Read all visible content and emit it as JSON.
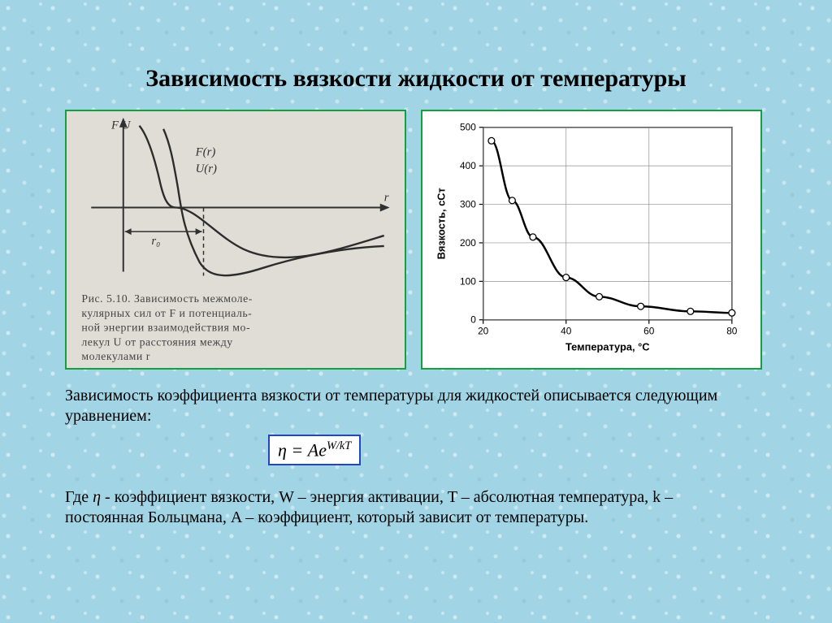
{
  "title": "Зависимость вязкости жидкости от температуры",
  "left_figure": {
    "type": "schematic-diagram",
    "background_color": "#e0ddd6",
    "line_color": "#303030",
    "y_axis_top_labels": "F   U",
    "curves": {
      "f_label": "F(r)",
      "u_label": "U(r)"
    },
    "x_axis_label": "r",
    "r0_label": "r₀",
    "caption_lines": [
      "Рис. 5.10. Зависимость межмоле-",
      "кулярных сил от F и потенциаль-",
      "ной энергии взаимодействия мо-",
      "лекул U от расстояния между",
      "молекулами r"
    ]
  },
  "right_figure": {
    "type": "line",
    "background_color": "#ffffff",
    "line_color": "#000000",
    "grid_color": "#909090",
    "marker_fill": "#ffffff",
    "marker_stroke": "#000000",
    "x_label": "Температура, °С",
    "y_label": "Вязкость, сСт",
    "xlim": [
      20,
      80
    ],
    "ylim": [
      0,
      500
    ],
    "xticks": [
      20,
      40,
      60,
      80
    ],
    "yticks": [
      0,
      100,
      200,
      300,
      400,
      500
    ],
    "series": {
      "x": [
        22,
        27,
        32,
        40,
        48,
        58,
        70,
        80
      ],
      "y": [
        465,
        310,
        215,
        110,
        60,
        35,
        22,
        18
      ]
    },
    "label_fontsize": 13,
    "tick_fontsize": 12,
    "line_width": 2.5,
    "marker_radius": 4
  },
  "paragraph1": "Зависимость коэффициента вязкости от температуры для жидкостей описывается следующим уравнением:",
  "equation": {
    "lhs": "η",
    "eq": " = ",
    "base": "Ae",
    "exp": "W/kT"
  },
  "paragraph2_prefix": "Где ",
  "paragraph2_eta": "η",
  "paragraph2_rest": " - коэффициент вязкости, W – энергия активации, T – абсолютная температура, k – постоянная Больцмана, A – коэффициент, который зависит от температуры."
}
